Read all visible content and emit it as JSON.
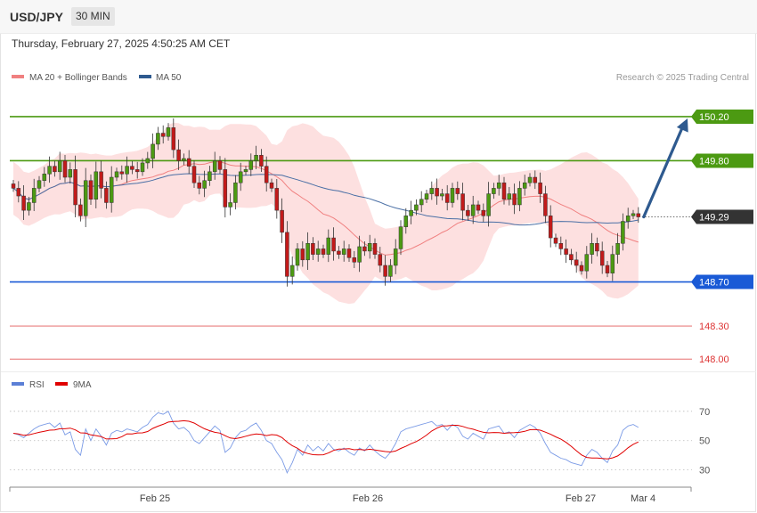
{
  "header": {
    "symbol": "USD/JPY",
    "timeframe": "30 MIN"
  },
  "datetime": "Thursday, February 27, 2025 4:50:25 AM CET",
  "main_legend": {
    "ma20_label": "MA 20 + Bollinger Bands",
    "ma50_label": "MA 50",
    "ma20_color": "#f08080",
    "ma50_color": "#2e5a8f",
    "credit": "Research © 2025 Trading Central"
  },
  "rsi_legend": {
    "rsi_label": "RSI",
    "ma_label": "9MA",
    "rsi_color": "#5b7fd6",
    "ma_color": "#e00000"
  },
  "chart_data": [
    {
      "type": "candlestick",
      "ylim": [
        147.88,
        150.41
      ],
      "x_ticks": [
        "Feb 25",
        "Feb 26",
        "Feb 27",
        "Mar 4"
      ],
      "levels": [
        {
          "value": 150.2,
          "label": "150.20",
          "color": "#4c9a12",
          "kind": "resistance"
        },
        {
          "value": 149.8,
          "label": "149.80",
          "color": "#4c9a12",
          "kind": "resistance"
        },
        {
          "value": 149.29,
          "label": "149.29",
          "color": "#333333",
          "kind": "last"
        },
        {
          "value": 148.7,
          "label": "148.70",
          "color": "#1a5ad6",
          "kind": "support"
        },
        {
          "value": 148.3,
          "label": "148.30",
          "color": "#dd3333",
          "kind": "support"
        },
        {
          "value": 148.0,
          "label": "148.00",
          "color": "#dd3333",
          "kind": "support"
        }
      ],
      "projection": {
        "from": 149.29,
        "to": 150.2
      },
      "series": [
        {
          "name": "Price",
          "closes": [
            149.55,
            149.48,
            149.35,
            149.42,
            149.55,
            149.62,
            149.68,
            149.75,
            149.7,
            149.8,
            149.65,
            149.72,
            149.4,
            149.3,
            149.62,
            149.45,
            149.7,
            149.55,
            149.42,
            149.65,
            149.7,
            149.68,
            149.75,
            149.72,
            149.7,
            149.78,
            149.82,
            149.95,
            150.05,
            150.02,
            150.1,
            149.9,
            149.8,
            149.82,
            149.75,
            149.6,
            149.55,
            149.62,
            149.7,
            149.8,
            149.72,
            149.38,
            149.42,
            149.6,
            149.7,
            149.72,
            149.8,
            149.85,
            149.75,
            149.6,
            149.55,
            149.35,
            149.15,
            148.75,
            148.85,
            149.0,
            148.9,
            149.05,
            148.95,
            149.0,
            148.95,
            149.1,
            148.98,
            148.95,
            149.0,
            148.92,
            148.88,
            149.02,
            148.98,
            149.05,
            148.95,
            148.85,
            148.75,
            148.85,
            149.0,
            149.2,
            149.3,
            149.35,
            149.4,
            149.45,
            149.5,
            149.55,
            149.48,
            149.5,
            149.42,
            149.55,
            149.5,
            149.35,
            149.3,
            149.4,
            149.35,
            149.3,
            149.5,
            149.55,
            149.6,
            149.45,
            149.5,
            149.4,
            149.55,
            149.6,
            149.65,
            149.6,
            149.5,
            149.3,
            149.1,
            149.05,
            149.0,
            148.95,
            148.9,
            148.85,
            148.8,
            148.95,
            149.05,
            148.98,
            148.85,
            148.78,
            148.95,
            149.05,
            149.25,
            149.3,
            149.32,
            149.29
          ]
        },
        {
          "name": "MA 20"
        },
        {
          "name": "MA 50"
        }
      ]
    },
    {
      "type": "line",
      "ylim": [
        22.5,
        79
      ],
      "y_ticks": [
        30,
        50,
        70
      ],
      "series": [
        {
          "name": "RSI",
          "values": [
            55,
            54,
            52,
            55,
            58,
            60,
            61,
            62,
            59,
            62,
            54,
            56,
            44,
            40,
            58,
            50,
            58,
            53,
            47,
            55,
            57,
            56,
            58,
            57,
            56,
            59,
            61,
            66,
            69,
            68,
            70,
            62,
            58,
            59,
            56,
            50,
            48,
            52,
            56,
            60,
            57,
            42,
            45,
            52,
            56,
            57,
            60,
            62,
            57,
            50,
            48,
            42,
            37,
            28,
            35,
            44,
            40,
            47,
            43,
            46,
            43,
            48,
            44,
            43,
            45,
            42,
            40,
            45,
            43,
            47,
            43,
            40,
            38,
            42,
            48,
            56,
            58,
            59,
            60,
            61,
            62,
            63,
            60,
            61,
            57,
            61,
            59,
            53,
            51,
            55,
            53,
            51,
            58,
            59,
            60,
            55,
            56,
            52,
            57,
            59,
            61,
            59,
            55,
            48,
            42,
            40,
            38,
            37,
            35,
            34,
            33,
            40,
            44,
            42,
            38,
            35,
            43,
            47,
            57,
            60,
            61,
            59
          ]
        },
        {
          "name": "9MA"
        }
      ]
    }
  ]
}
